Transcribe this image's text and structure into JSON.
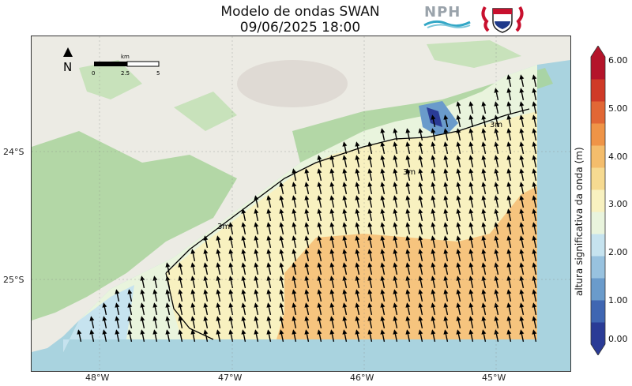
{
  "title": {
    "line1": "Modelo de ondas SWAN",
    "line2": "09/06/2025 18:00"
  },
  "logos": {
    "nph_text": "NPH"
  },
  "map": {
    "north_label": "N",
    "scale_unit": "km",
    "scale_ticks": [
      "0",
      "2.5",
      "5"
    ],
    "contour_label": "3m",
    "colors": {
      "ocean": "#a9d3df",
      "land": "#ecebe4",
      "forest": "#a9d39b",
      "field_low": "#d9eef1",
      "field_mid": "#f7f2c5",
      "field_high": "#f6c47e"
    }
  },
  "axes": {
    "lat_labels": [
      "24°S",
      "25°S"
    ],
    "lon_labels": [
      "48°W",
      "47°W",
      "46°W",
      "45°W"
    ]
  },
  "colorbar": {
    "label": "altura significativa da onda (m)",
    "ticks": [
      "6.00",
      "5.00",
      "4.00",
      "3.00",
      "2.00",
      "1.00",
      "0.00"
    ],
    "colors": [
      "#2a3b96",
      "#3f66b2",
      "#6a9bcb",
      "#98c2df",
      "#c6e3ef",
      "#e9f4dd",
      "#f8f1c0",
      "#f6da91",
      "#f4bd6c",
      "#ef9447",
      "#e16735",
      "#cf3a27",
      "#b4142a"
    ]
  }
}
